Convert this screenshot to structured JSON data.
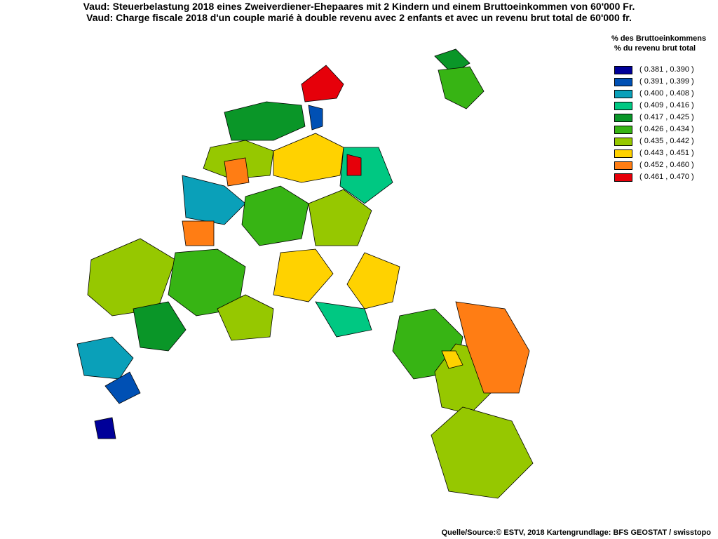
{
  "title_de": "Vaud: Steuerbelastung 2018 eines Zweiverdiener-Ehepaares mit 2 Kindern und einem Bruttoeinkommen von 60'000 Fr.",
  "title_fr": "Vaud: Charge fiscale 2018 d'un couple marié à double revenu avec 2 enfants et avec un revenu brut total de 60'000 fr.",
  "legend": {
    "title_de": "% des Bruttoeinkommens",
    "title_fr": "% du revenu brut total",
    "classes": [
      {
        "label": "( 0.381 , 0.390 )",
        "color": "#000099"
      },
      {
        "label": "( 0.391 , 0.399 )",
        "color": "#0050b4"
      },
      {
        "label": "( 0.400 , 0.408 )",
        "color": "#0aa0b9"
      },
      {
        "label": "( 0.409 , 0.416 )",
        "color": "#00c882"
      },
      {
        "label": "( 0.417 , 0.425 )",
        "color": "#0a9628"
      },
      {
        "label": "( 0.426 , 0.434 )",
        "color": "#37b414"
      },
      {
        "label": "( 0.435 , 0.442 )",
        "color": "#96c800"
      },
      {
        "label": "( 0.443 , 0.451 )",
        "color": "#ffd200"
      },
      {
        "label": "( 0.452 , 0.460 )",
        "color": "#ff7d14"
      },
      {
        "label": "( 0.461 , 0.470 )",
        "color": "#e6000a"
      }
    ]
  },
  "source": "Quelle/Source:© ESTV, 2018 Kartengrundlage: BFS GEOSTAT / swisstopo",
  "map": {
    "canton": "Vaud",
    "regions": [
      {
        "class": 9,
        "name": ""
      },
      {
        "class": 4
      },
      {
        "class": 4
      },
      {
        "class": 5
      },
      {
        "class": 1
      },
      {
        "class": 6
      },
      {
        "class": 7
      },
      {
        "class": 8
      },
      {
        "class": 3
      },
      {
        "class": 2
      },
      {
        "class": 0
      },
      {
        "class": 5
      },
      {
        "class": 6
      },
      {
        "class": 8
      },
      {
        "class": 9
      },
      {
        "class": 7
      },
      {
        "class": 6
      },
      {
        "class": 5
      },
      {
        "class": 4
      },
      {
        "class": 6
      },
      {
        "class": 7
      },
      {
        "class": 3
      },
      {
        "class": 2
      },
      {
        "class": 1
      },
      {
        "class": 0
      },
      {
        "class": 5
      },
      {
        "class": 6
      },
      {
        "class": 7
      },
      {
        "class": 8
      },
      {
        "class": 6
      }
    ]
  }
}
